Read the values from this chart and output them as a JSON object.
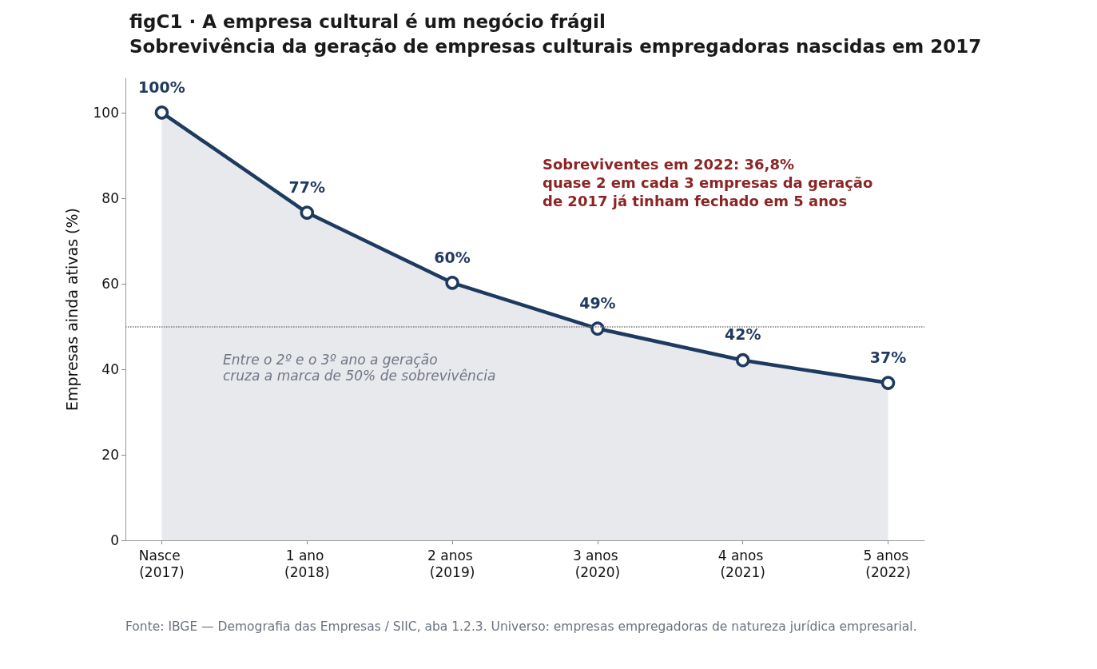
{
  "chart_data": {
    "type": "area",
    "title": "figC1 · A empresa cultural é um negócio frágil",
    "subtitle": "Sobrevivência da geração de empresas culturais empregadoras nascidas em 2017",
    "ylabel": "Empresas ainda ativas (%)",
    "categories": [
      "Nasce (2017)",
      "1 ano (2018)",
      "2 anos (2019)",
      "3 anos (2020)",
      "4 anos (2021)",
      "5 anos (2022)"
    ],
    "series": [
      {
        "color": "#1f3a5f",
        "values": [
          100,
          76.6,
          60.2,
          49.5,
          42.1,
          36.8
        ],
        "value_labels": [
          "100%",
          "77%",
          "60%",
          "49%",
          "42%",
          "37%"
        ]
      }
    ],
    "ylim": [
      0,
      108
    ],
    "yticks": [
      0,
      20,
      40,
      60,
      80,
      100
    ],
    "ref_lines": [
      {
        "axis": "y",
        "value": 50,
        "color": "#777777",
        "line_style": "dotted"
      }
    ],
    "annotations": [
      "Sobreviventes em 2022: 36,8%\nquase 2 em cada 3 empresas da geração\nde 2017 já tinham fechado em 5 anos",
      "Entre o 2º e o 3º ano a geração\ncruza a marca de 50% de sobrevivência",
      "Fonte: IBGE — Demografia das Empresas / SIIC, aba 1.2.3. Universo: empresas empregadoras de natureza jurídica empresarial."
    ],
    "grid": false,
    "marker": "circle",
    "line_style": "solid"
  }
}
